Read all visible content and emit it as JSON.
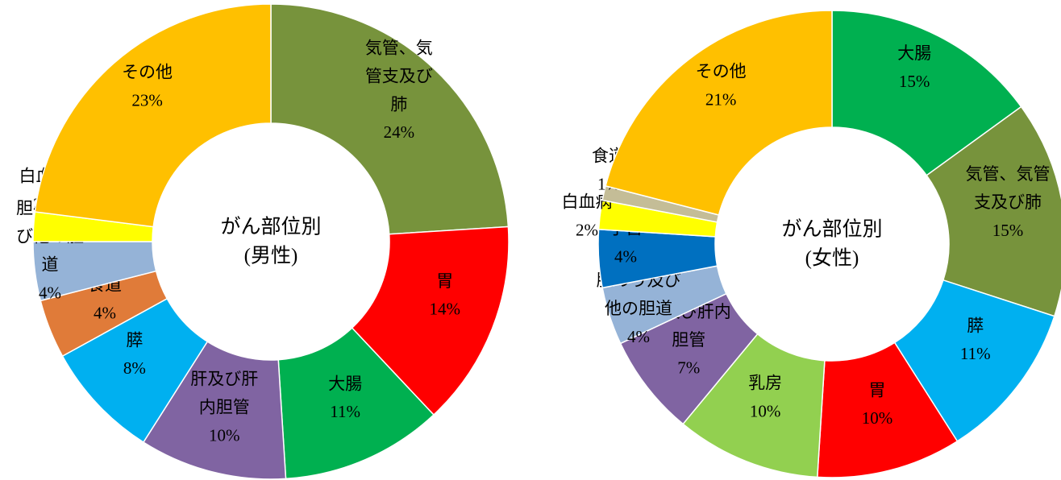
{
  "chart_data": [
    {
      "type": "donut",
      "title": "がん部位別",
      "subtitle": "(男性)",
      "categories": [
        "気管、気管支及び肺",
        "胃",
        "大腸",
        "肝及び肝内胆管",
        "膵",
        "食道",
        "胆のう及び他の胆道",
        "白血病",
        "その他"
      ],
      "values": [
        24,
        14,
        11,
        10,
        8,
        4,
        4,
        2,
        23
      ],
      "value_labels": [
        "24%",
        "14%",
        "11%",
        "10%",
        "8%",
        "4%",
        "4%",
        "2%",
        "23%"
      ],
      "colors": [
        "#77933C",
        "#FF0000",
        "#00B050",
        "#8064A2",
        "#00B0F0",
        "#E07B39",
        "#95B3D7",
        "#FFFF00",
        "#FFC000"
      ]
    },
    {
      "type": "donut",
      "title": "がん部位別",
      "subtitle": "(女性)",
      "categories": [
        "大腸",
        "気管、気管支及び肺",
        "膵",
        "胃",
        "乳房",
        "肝及び肝内胆管",
        "胆のう及び他の胆道",
        "子宮",
        "白血病",
        "食道",
        "その他"
      ],
      "values": [
        15,
        15,
        11,
        10,
        10,
        7,
        4,
        4,
        2,
        1,
        21
      ],
      "value_labels": [
        "15%",
        "15%",
        "11%",
        "10%",
        "10%",
        "7%",
        "4%",
        "4%",
        "2%",
        "1%",
        "21%"
      ],
      "colors": [
        "#00B050",
        "#77933C",
        "#00B0F0",
        "#FF0000",
        "#92D050",
        "#8064A2",
        "#95B3D7",
        "#0070C0",
        "#FFFF00",
        "#C4BD97",
        "#FFC000"
      ]
    }
  ]
}
